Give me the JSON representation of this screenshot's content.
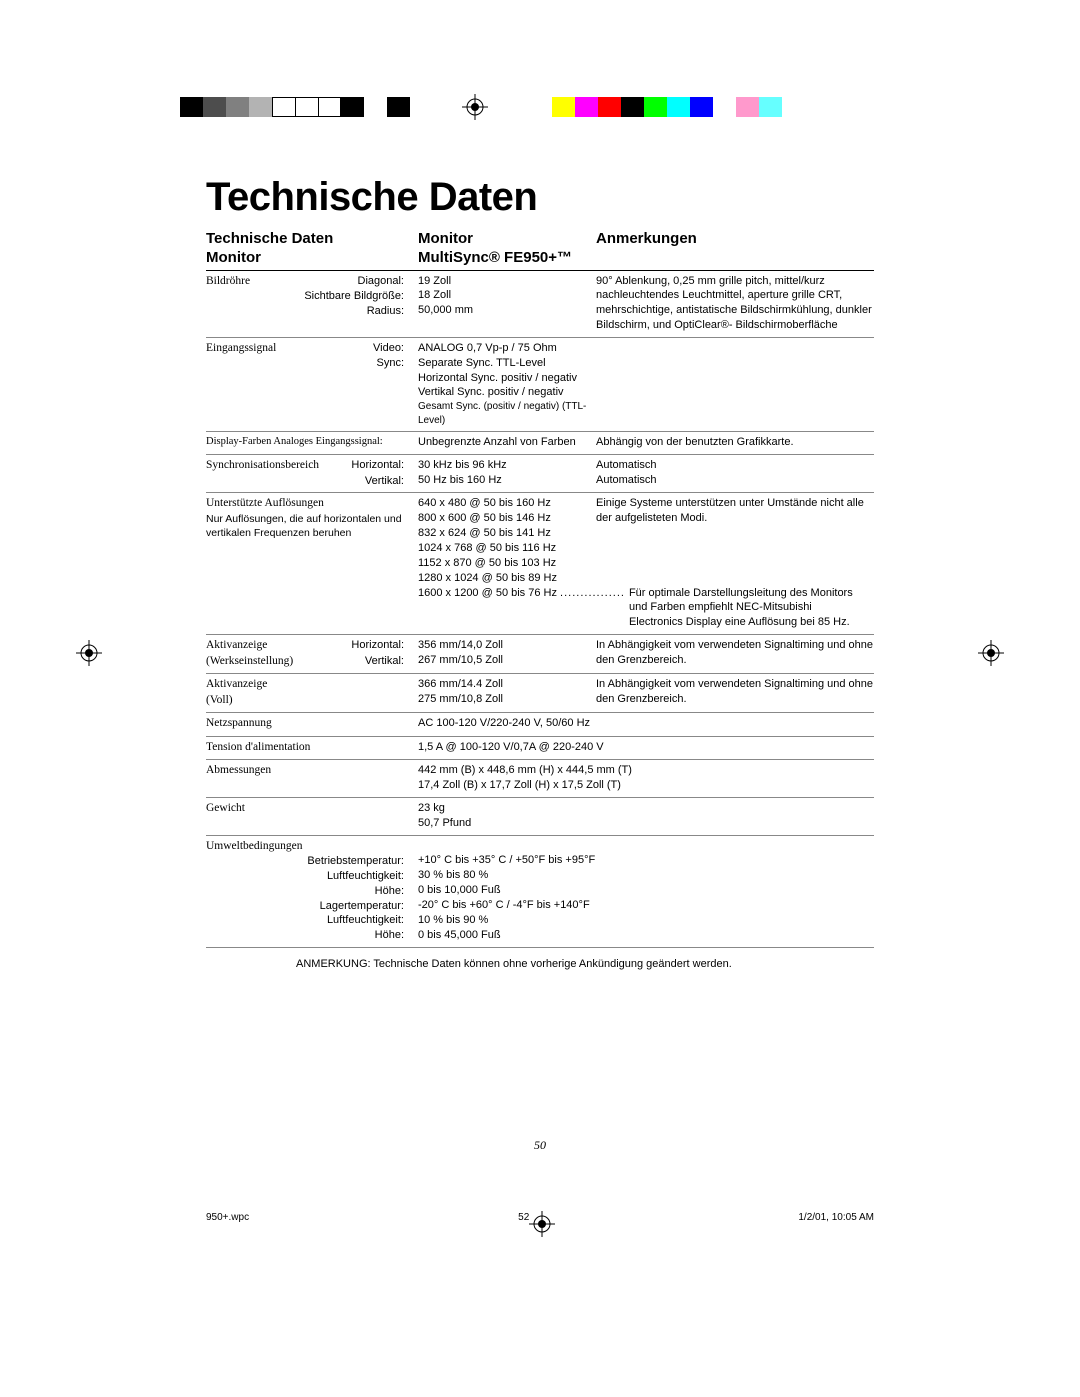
{
  "colorbar_left": [
    "#000000",
    "#4d4d4d",
    "#808080",
    "#b3b3b3",
    "#ffffff",
    "#ffffff",
    "#ffffff",
    "#000000",
    "#ffffff",
    "#000000"
  ],
  "colorbar_right": [
    "#ffff00",
    "#ff00ff",
    "#ff0000",
    "#000000",
    "#00ff00",
    "#00ffff",
    "#0000ff",
    "#ffffff",
    "#ff99cc",
    "#66ffff"
  ],
  "title": "Technische Daten",
  "header": {
    "col1_line1": "Technische Daten",
    "col1_line2": "Monitor",
    "col2_line1": "Monitor",
    "col2_line2": "MultiSync® FE950+™",
    "col3_line1": "Anmerkungen"
  },
  "rows": {
    "bild": {
      "label": "Bildröhre",
      "sub": [
        "Diagonal:",
        "Sichtbare Bildgröße:",
        "Radius:"
      ],
      "vals": [
        "19 Zoll",
        "18 Zoll",
        "50,000 mm"
      ],
      "note": "90° Ablenkung, 0,25 mm grille pitch, mittel/kurz nachleuchtendes Leuchtmittel, aperture grille CRT, mehrschichtige, antistatische Bildschirmkühlung, dunkler Bildschirm, und OptiClear®- Bildschirmoberfläche"
    },
    "eingang": {
      "label": "Eingangssignal",
      "sub": [
        "Video:",
        "Sync:"
      ],
      "vals": [
        "ANALOG 0,7 Vp-p / 75 Ohm",
        "Separate Sync. TTL-Level",
        "Horizontal Sync. positiv / negativ",
        "Vertikal Sync. positiv / negativ",
        "Gesamt Sync. (positiv / negativ) (TTL-Level)"
      ]
    },
    "display": {
      "label": "Display-Farben Analoges Eingangssignal:",
      "val": "Unbegrenzte Anzahl von Farben",
      "note": "Abhängig von der benutzten Grafikkarte."
    },
    "sync": {
      "label": "Synchronisationsbereich",
      "sub": [
        "Horizontal:",
        "Vertikal:"
      ],
      "vals": [
        "30 kHz bis 96 kHz",
        "50 Hz bis 160 Hz"
      ],
      "notes": [
        "Automatisch",
        "Automatisch"
      ]
    },
    "res": {
      "label": "Unterstützte Auflösungen",
      "sublabel": "Nur Auflösungen, die auf horizontalen und vertikalen Frequenzen beruhen",
      "vals": [
        "640 x 480 @ 50 bis 160 Hz",
        "800 x 600 @ 50 bis 146 Hz",
        "832 x 624 @ 50 bis 141 Hz",
        "1024 x 768 @ 50 bis 116 Hz",
        "1152 x 870 @ 50 bis 103 Hz",
        "1280 x 1024 @ 50 bis 89 Hz"
      ],
      "lastval": "1600 x 1200 @ 50 bis 76 Hz",
      "dots": "................",
      "note1": "Einige Systeme unterstützen unter Umstände nicht alle der aufgelisteten Modi.",
      "note2": "Für optimale Darstellungsleitung des Monitors und Farben empfiehlt NEC-Mitsubishi Electronics Display eine Auflösung bei 85 Hz."
    },
    "akt1": {
      "label": "Aktivanzeige",
      "paren": "(Werkseinstellung)",
      "sub": [
        "Horizontal:",
        "Vertikal:"
      ],
      "vals": [
        "356 mm/14,0 Zoll",
        "267 mm/10,5 Zoll"
      ],
      "note": "In Abhängigkeit vom verwendeten Signaltiming und ohne den Grenzbereich."
    },
    "akt2": {
      "label": "Aktivanzeige",
      "paren": "(Voll)",
      "vals": [
        "366 mm/14.4 Zoll",
        "275 mm/10,8 Zoll"
      ],
      "note": "In Abhängigkeit vom verwendeten Signaltiming und ohne den Grenzbereich."
    },
    "netz": {
      "label": "Netzspannung",
      "val": "AC 100-120 V/220-240 V, 50/60 Hz"
    },
    "tension": {
      "label": "Tension d'alimentation",
      "val": "1,5 A @ 100-120 V/0,7A @ 220-240 V"
    },
    "abm": {
      "label": "Abmessungen",
      "vals": [
        "442 mm (B) x 448,6 mm (H) x 444,5 mm (T)",
        "17,4 Zoll (B) x 17,7 Zoll (H) x 17,5 Zoll (T)"
      ]
    },
    "gew": {
      "label": "Gewicht",
      "vals": [
        "23 kg",
        "50,7 Pfund"
      ]
    },
    "umw": {
      "label": "Umweltbedingungen",
      "sub": [
        "Betriebstemperatur:",
        "Luftfeuchtigkeit:",
        "Höhe:",
        "Lagertemperatur:",
        "Luftfeuchtigkeit:",
        "Höhe:"
      ],
      "vals": [
        "+10° C bis +35° C / +50°F bis +95°F",
        "30 % bis 80 %",
        "0 bis 10,000 Fuß",
        "-20° C bis +60° C / -4°F bis +140°F",
        "10 % bis 90 %",
        "0 bis 45,000 Fuß"
      ]
    }
  },
  "footnote": "ANMERKUNG: Technische Daten können ohne vorherige Ankündigung geändert werden.",
  "pagenum": "50",
  "footer": {
    "file": "950+.wpc",
    "sig": "52",
    "date": "1/2/01, 10:05 AM"
  }
}
